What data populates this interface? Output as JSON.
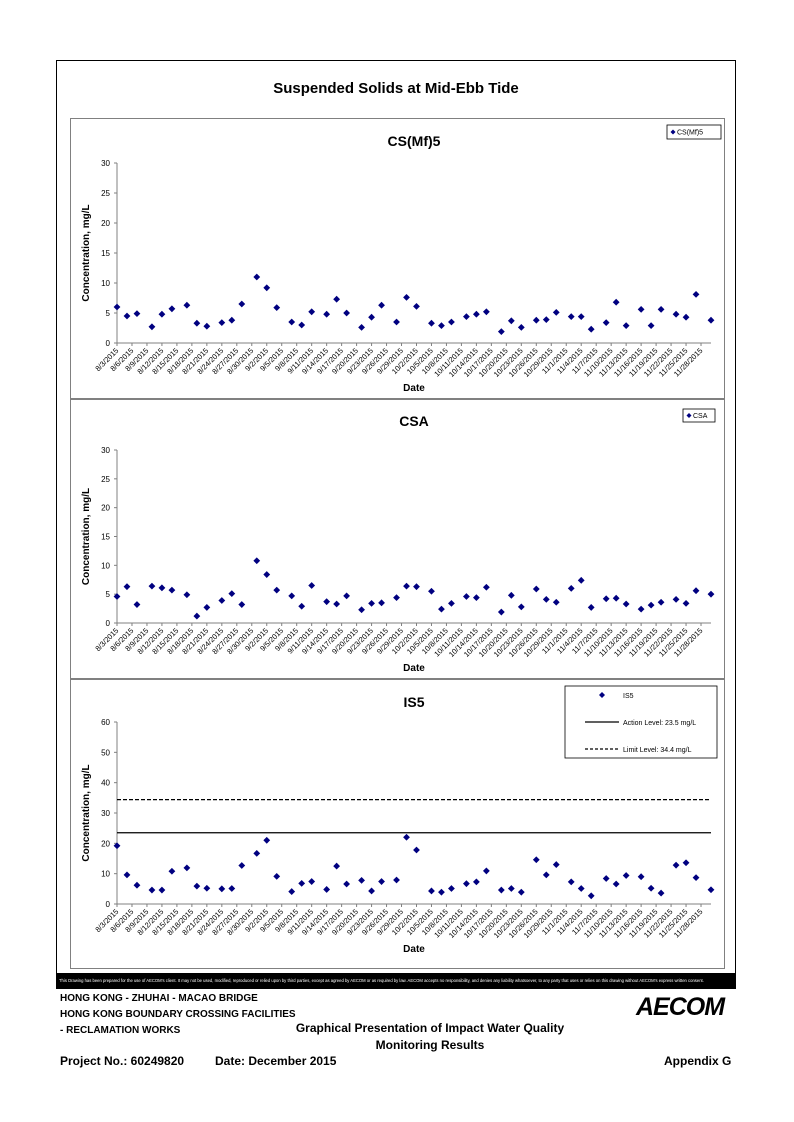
{
  "page": {
    "title": "Suspended Solids at Mid-Ebb Tide",
    "disclaimer": "This Drawing has been prepared for the use of AECOM's client. It may not be used, modified, reproduced or relied upon by third parties, except as agreed by AECOM or as required by law. AECOM accepts no responsibility, and denies any liability whatsoever, to any party that uses or relies on this drawing without AECOM's express written consent.",
    "project_line1": "HONG KONG - ZHUHAI - MACAO BRIDGE",
    "project_line2": "HONG KONG BOUNDARY CROSSING FACILITIES",
    "project_line3": "- RECLAMATION WORKS",
    "subtitle_line1": "Graphical Presentation of Impact Water Quality",
    "subtitle_line2": "Monitoring Results",
    "project_no": "Project No.: 60249820",
    "date": "Date: December 2015",
    "appendix": "Appendix G",
    "logo": "AECOM"
  },
  "chart_data": [
    {
      "type": "scatter",
      "title": "CS(Mf)5",
      "xlabel": "Date",
      "ylabel": "Concentration, mg/L",
      "ylim": [
        0,
        30
      ],
      "yticks": [
        0,
        5,
        10,
        15,
        20,
        25,
        30
      ],
      "grid": false,
      "legend": "top-right",
      "x_tick_labels": [
        "8/3/2015",
        "8/6/2015",
        "8/9/2015",
        "8/12/2015",
        "8/15/2015",
        "8/18/2015",
        "8/21/2015",
        "8/24/2015",
        "8/27/2015",
        "8/30/2015",
        "9/2/2015",
        "9/5/2015",
        "9/8/2015",
        "9/11/2015",
        "9/14/2015",
        "9/17/2015",
        "9/20/2015",
        "9/23/2015",
        "9/26/2015",
        "9/29/2015",
        "10/2/2015",
        "10/5/2015",
        "10/8/2015",
        "10/11/2015",
        "10/14/2015",
        "10/17/2015",
        "10/20/2015",
        "10/23/2015",
        "10/26/2015",
        "10/29/2015",
        "11/1/2015",
        "11/4/2015",
        "11/7/2015",
        "11/10/2015",
        "11/13/2015",
        "11/16/2015",
        "11/19/2015",
        "11/22/2015",
        "11/25/2015",
        "11/28/2015"
      ],
      "series": [
        {
          "name": "CS(Mf)5",
          "marker": "diamond",
          "color": "#000080",
          "points": [
            [
              "8/3/2015",
              6.0
            ],
            [
              "8/5/2015",
              4.5
            ],
            [
              "8/7/2015",
              4.9
            ],
            [
              "8/10/2015",
              2.7
            ],
            [
              "8/12/2015",
              4.8
            ],
            [
              "8/14/2015",
              5.7
            ],
            [
              "8/17/2015",
              6.3
            ],
            [
              "8/19/2015",
              3.3
            ],
            [
              "8/21/2015",
              2.8
            ],
            [
              "8/24/2015",
              3.4
            ],
            [
              "8/26/2015",
              3.8
            ],
            [
              "8/28/2015",
              6.5
            ],
            [
              "8/31/2015",
              11.0
            ],
            [
              "9/2/2015",
              9.2
            ],
            [
              "9/4/2015",
              5.9
            ],
            [
              "9/7/2015",
              3.5
            ],
            [
              "9/9/2015",
              3.0
            ],
            [
              "9/11/2015",
              5.2
            ],
            [
              "9/14/2015",
              4.8
            ],
            [
              "9/16/2015",
              7.3
            ],
            [
              "9/18/2015",
              5.0
            ],
            [
              "9/21/2015",
              2.6
            ],
            [
              "9/23/2015",
              4.3
            ],
            [
              "9/25/2015",
              6.3
            ],
            [
              "9/28/2015",
              3.5
            ],
            [
              "9/30/2015",
              7.6
            ],
            [
              "10/2/2015",
              6.1
            ],
            [
              "10/5/2015",
              3.3
            ],
            [
              "10/7/2015",
              2.9
            ],
            [
              "10/9/2015",
              3.5
            ],
            [
              "10/12/2015",
              4.4
            ],
            [
              "10/14/2015",
              4.8
            ],
            [
              "10/16/2015",
              5.2
            ],
            [
              "10/19/2015",
              1.9
            ],
            [
              "10/21/2015",
              3.7
            ],
            [
              "10/23/2015",
              2.6
            ],
            [
              "10/26/2015",
              3.8
            ],
            [
              "10/28/2015",
              3.9
            ],
            [
              "10/30/2015",
              5.1
            ],
            [
              "11/2/2015",
              4.4
            ],
            [
              "11/4/2015",
              4.4
            ],
            [
              "11/6/2015",
              2.3
            ],
            [
              "11/9/2015",
              3.4
            ],
            [
              "11/11/2015",
              6.8
            ],
            [
              "11/13/2015",
              2.9
            ],
            [
              "11/16/2015",
              5.6
            ],
            [
              "11/18/2015",
              2.9
            ],
            [
              "11/20/2015",
              5.6
            ],
            [
              "11/23/2015",
              4.8
            ],
            [
              "11/25/2015",
              4.3
            ],
            [
              "11/27/2015",
              8.1
            ],
            [
              "11/30/2015",
              3.8
            ]
          ]
        }
      ]
    },
    {
      "type": "scatter",
      "title": "CSA",
      "xlabel": "Date",
      "ylabel": "Concentration, mg/L",
      "ylim": [
        0,
        30
      ],
      "yticks": [
        0,
        5,
        10,
        15,
        20,
        25,
        30
      ],
      "grid": false,
      "legend": "top-right",
      "x_tick_labels": [
        "8/3/2015",
        "8/6/2015",
        "8/9/2015",
        "8/12/2015",
        "8/15/2015",
        "8/18/2015",
        "8/21/2015",
        "8/24/2015",
        "8/27/2015",
        "8/30/2015",
        "9/2/2015",
        "9/5/2015",
        "9/8/2015",
        "9/11/2015",
        "9/14/2015",
        "9/17/2015",
        "9/20/2015",
        "9/23/2015",
        "9/26/2015",
        "9/29/2015",
        "10/2/2015",
        "10/5/2015",
        "10/8/2015",
        "10/11/2015",
        "10/14/2015",
        "10/17/2015",
        "10/20/2015",
        "10/23/2015",
        "10/26/2015",
        "10/29/2015",
        "11/1/2015",
        "11/4/2015",
        "11/7/2015",
        "11/10/2015",
        "11/13/2015",
        "11/16/2015",
        "11/19/2015",
        "11/22/2015",
        "11/25/2015",
        "11/28/2015"
      ],
      "series": [
        {
          "name": "CSA",
          "marker": "diamond",
          "color": "#000080",
          "points": [
            [
              "8/3/2015",
              4.6
            ],
            [
              "8/5/2015",
              6.3
            ],
            [
              "8/7/2015",
              3.2
            ],
            [
              "8/10/2015",
              6.4
            ],
            [
              "8/12/2015",
              6.1
            ],
            [
              "8/14/2015",
              5.7
            ],
            [
              "8/17/2015",
              4.9
            ],
            [
              "8/19/2015",
              1.2
            ],
            [
              "8/21/2015",
              2.7
            ],
            [
              "8/24/2015",
              3.9
            ],
            [
              "8/26/2015",
              5.1
            ],
            [
              "8/28/2015",
              3.2
            ],
            [
              "8/31/2015",
              10.8
            ],
            [
              "9/2/2015",
              8.4
            ],
            [
              "9/4/2015",
              5.7
            ],
            [
              "9/7/2015",
              4.7
            ],
            [
              "9/9/2015",
              2.9
            ],
            [
              "9/11/2015",
              6.5
            ],
            [
              "9/14/2015",
              3.7
            ],
            [
              "9/16/2015",
              3.3
            ],
            [
              "9/18/2015",
              4.7
            ],
            [
              "9/21/2015",
              2.3
            ],
            [
              "9/23/2015",
              3.4
            ],
            [
              "9/25/2015",
              3.5
            ],
            [
              "9/28/2015",
              4.4
            ],
            [
              "9/30/2015",
              6.4
            ],
            [
              "10/2/2015",
              6.3
            ],
            [
              "10/5/2015",
              5.5
            ],
            [
              "10/7/2015",
              2.4
            ],
            [
              "10/9/2015",
              3.4
            ],
            [
              "10/12/2015",
              4.6
            ],
            [
              "10/14/2015",
              4.4
            ],
            [
              "10/16/2015",
              6.2
            ],
            [
              "10/19/2015",
              1.9
            ],
            [
              "10/21/2015",
              4.8
            ],
            [
              "10/23/2015",
              2.8
            ],
            [
              "10/26/2015",
              5.9
            ],
            [
              "10/28/2015",
              4.1
            ],
            [
              "10/30/2015",
              3.6
            ],
            [
              "11/2/2015",
              6.0
            ],
            [
              "11/4/2015",
              7.4
            ],
            [
              "11/6/2015",
              2.7
            ],
            [
              "11/9/2015",
              4.2
            ],
            [
              "11/11/2015",
              4.3
            ],
            [
              "11/13/2015",
              3.3
            ],
            [
              "11/16/2015",
              2.4
            ],
            [
              "11/18/2015",
              3.1
            ],
            [
              "11/20/2015",
              3.6
            ],
            [
              "11/23/2015",
              4.1
            ],
            [
              "11/25/2015",
              3.4
            ],
            [
              "11/27/2015",
              5.6
            ],
            [
              "11/30/2015",
              5.0
            ]
          ]
        }
      ]
    },
    {
      "type": "scatter",
      "title": "IS5",
      "xlabel": "Date",
      "ylabel": "Concentration, mg/L",
      "ylim": [
        0,
        60
      ],
      "yticks": [
        0,
        10,
        20,
        30,
        40,
        50,
        60
      ],
      "grid": false,
      "legend": "top-right",
      "x_tick_labels": [
        "8/3/2015",
        "8/6/2015",
        "8/9/2015",
        "8/12/2015",
        "8/15/2015",
        "8/18/2015",
        "8/21/2015",
        "8/24/2015",
        "8/27/2015",
        "8/30/2015",
        "9/2/2015",
        "9/5/2015",
        "9/8/2015",
        "9/11/2015",
        "9/14/2015",
        "9/17/2015",
        "9/20/2015",
        "9/23/2015",
        "9/26/2015",
        "9/29/2015",
        "10/2/2015",
        "10/5/2015",
        "10/8/2015",
        "10/11/2015",
        "10/14/2015",
        "10/17/2015",
        "10/20/2015",
        "10/23/2015",
        "10/26/2015",
        "10/29/2015",
        "11/1/2015",
        "11/4/2015",
        "11/7/2015",
        "11/10/2015",
        "11/13/2015",
        "11/16/2015",
        "11/19/2015",
        "11/22/2015",
        "11/25/2015",
        "11/28/2015"
      ],
      "series": [
        {
          "name": "IS5",
          "marker": "diamond",
          "color": "#000080",
          "points": [
            [
              "8/3/2015",
              19.2
            ],
            [
              "8/5/2015",
              9.6
            ],
            [
              "8/7/2015",
              6.2
            ],
            [
              "8/10/2015",
              4.6
            ],
            [
              "8/12/2015",
              4.6
            ],
            [
              "8/14/2015",
              10.8
            ],
            [
              "8/17/2015",
              11.9
            ],
            [
              "8/19/2015",
              5.9
            ],
            [
              "8/21/2015",
              5.2
            ],
            [
              "8/24/2015",
              5.0
            ],
            [
              "8/26/2015",
              5.1
            ],
            [
              "8/28/2015",
              12.7
            ],
            [
              "8/31/2015",
              16.7
            ],
            [
              "9/2/2015",
              21.0
            ],
            [
              "9/4/2015",
              9.1
            ],
            [
              "9/7/2015",
              4.1
            ],
            [
              "9/9/2015",
              6.8
            ],
            [
              "9/11/2015",
              7.4
            ],
            [
              "9/14/2015",
              4.8
            ],
            [
              "9/16/2015",
              12.5
            ],
            [
              "9/18/2015",
              6.6
            ],
            [
              "9/21/2015",
              7.8
            ],
            [
              "9/23/2015",
              4.3
            ],
            [
              "9/25/2015",
              7.4
            ],
            [
              "9/28/2015",
              7.9
            ],
            [
              "9/30/2015",
              22.0
            ],
            [
              "10/2/2015",
              17.8
            ],
            [
              "10/5/2015",
              4.3
            ],
            [
              "10/7/2015",
              3.9
            ],
            [
              "10/9/2015",
              5.1
            ],
            [
              "10/12/2015",
              6.7
            ],
            [
              "10/14/2015",
              7.3
            ],
            [
              "10/16/2015",
              10.9
            ],
            [
              "10/19/2015",
              4.6
            ],
            [
              "10/21/2015",
              5.1
            ],
            [
              "10/23/2015",
              3.9
            ],
            [
              "10/26/2015",
              14.6
            ],
            [
              "10/28/2015",
              9.6
            ],
            [
              "10/30/2015",
              13.0
            ],
            [
              "11/2/2015",
              7.3
            ],
            [
              "11/4/2015",
              5.1
            ],
            [
              "11/6/2015",
              2.7
            ],
            [
              "11/9/2015",
              8.4
            ],
            [
              "11/11/2015",
              6.6
            ],
            [
              "11/13/2015",
              9.4
            ],
            [
              "11/16/2015",
              9.0
            ],
            [
              "11/18/2015",
              5.2
            ],
            [
              "11/20/2015",
              3.6
            ],
            [
              "11/23/2015",
              12.8
            ],
            [
              "11/25/2015",
              13.6
            ],
            [
              "11/27/2015",
              8.7
            ],
            [
              "11/30/2015",
              4.7
            ]
          ]
        },
        {
          "name": "Action Level: 23.5 mg/L",
          "type": "line",
          "style": "solid",
          "value": 23.5
        },
        {
          "name": "Limit Level: 34.4 mg/L",
          "type": "line",
          "style": "dashed",
          "value": 34.4
        }
      ]
    }
  ]
}
